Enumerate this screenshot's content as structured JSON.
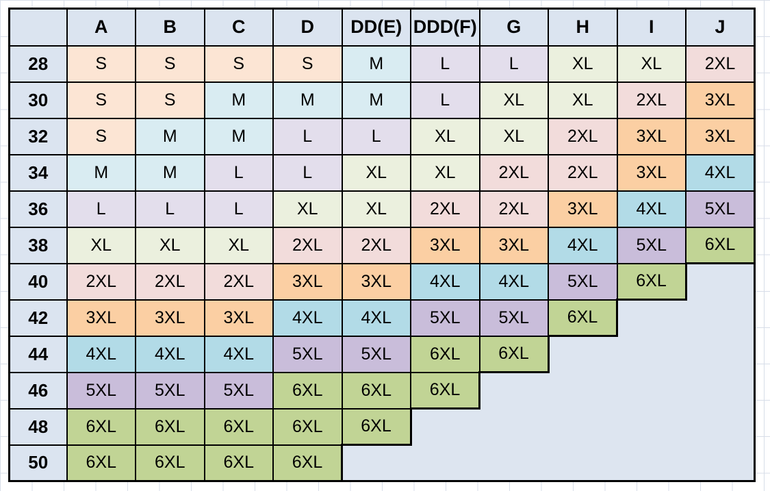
{
  "chart_data": {
    "type": "table",
    "corner_cell": "",
    "columns": [
      "A",
      "B",
      "C",
      "D",
      "DD(E)",
      "DDD(F)",
      "G",
      "H",
      "I",
      "J"
    ],
    "rows": [
      {
        "band": "28",
        "cells": [
          "S",
          "S",
          "S",
          "S",
          "M",
          "L",
          "L",
          "XL",
          "XL",
          "2XL"
        ]
      },
      {
        "band": "30",
        "cells": [
          "S",
          "S",
          "M",
          "M",
          "M",
          "L",
          "XL",
          "XL",
          "2XL",
          "3XL"
        ]
      },
      {
        "band": "32",
        "cells": [
          "S",
          "M",
          "M",
          "L",
          "L",
          "XL",
          "XL",
          "2XL",
          "3XL",
          "3XL"
        ]
      },
      {
        "band": "34",
        "cells": [
          "M",
          "M",
          "L",
          "L",
          "XL",
          "XL",
          "2XL",
          "2XL",
          "3XL",
          "4XL"
        ]
      },
      {
        "band": "36",
        "cells": [
          "L",
          "L",
          "L",
          "XL",
          "XL",
          "2XL",
          "2XL",
          "3XL",
          "4XL",
          "5XL"
        ]
      },
      {
        "band": "38",
        "cells": [
          "XL",
          "XL",
          "XL",
          "2XL",
          "2XL",
          "3XL",
          "3XL",
          "4XL",
          "5XL",
          "6XL"
        ]
      },
      {
        "band": "40",
        "cells": [
          "2XL",
          "2XL",
          "2XL",
          "3XL",
          "3XL",
          "4XL",
          "4XL",
          "5XL",
          "6XL",
          null
        ]
      },
      {
        "band": "42",
        "cells": [
          "3XL",
          "3XL",
          "3XL",
          "4XL",
          "4XL",
          "5XL",
          "5XL",
          "6XL",
          null,
          null
        ]
      },
      {
        "band": "44",
        "cells": [
          "4XL",
          "4XL",
          "4XL",
          "5XL",
          "5XL",
          "6XL",
          "6XL",
          null,
          null,
          null
        ]
      },
      {
        "band": "46",
        "cells": [
          "5XL",
          "5XL",
          "5XL",
          "6XL",
          "6XL",
          "6XL",
          null,
          null,
          null,
          null
        ]
      },
      {
        "band": "48",
        "cells": [
          "6XL",
          "6XL",
          "6XL",
          "6XL",
          "6XL",
          null,
          null,
          null,
          null,
          null
        ]
      },
      {
        "band": "50",
        "cells": [
          "6XL",
          "6XL",
          "6XL",
          "6XL",
          null,
          null,
          null,
          null,
          null,
          null
        ]
      }
    ],
    "size_colors": {
      "S": "#FCE5D4",
      "M": "#D9ECF2",
      "L": "#E3DEEC",
      "XL": "#EBF0DE",
      "2XL": "#F2DCDB",
      "3XL": "#FBCFA3",
      "4XL": "#B2DBE7",
      "5XL": "#C9BDDA",
      "6XL": "#C1D495"
    },
    "colors": {
      "header_bg": "#DBE4F0",
      "empty_bg": "#DDE5F0",
      "border": "#000000",
      "text": "#000000",
      "gridline": "#D7DDE8",
      "background": "#FFFFFF"
    }
  }
}
